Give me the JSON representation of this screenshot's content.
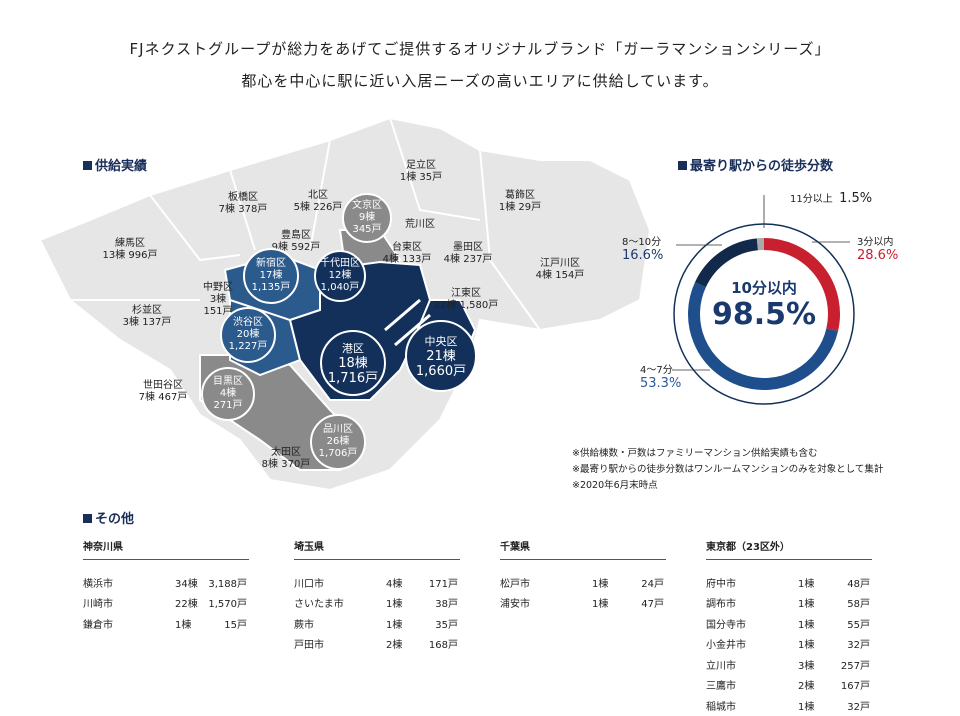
{
  "header": {
    "line1": "FJネクストグループが総力をあげてご提供するオリジナルブランド「ガーラマンションシリーズ」",
    "line2": "都心を中心に駅に近い入居ニーズの高いエリアに供給しています。"
  },
  "map_section": {
    "title": "供給実績",
    "labels": [
      {
        "name": "足立区",
        "value": "1棟 35戸"
      },
      {
        "name": "北区",
        "value": "5棟 226戸"
      },
      {
        "name": "板橋区",
        "value": "7棟 378戸"
      },
      {
        "name": "葛飾区",
        "value": "1棟 29戸"
      },
      {
        "name": "荒川区",
        "value": ""
      },
      {
        "name": "豊島区",
        "value": "9棟 592戸"
      },
      {
        "name": "練馬区",
        "value": "13棟 996戸"
      },
      {
        "name": "台東区",
        "value": "4棟 133戸"
      },
      {
        "name": "墨田区",
        "value": "4棟 237戸"
      },
      {
        "name": "江戸川区",
        "value": "4棟 154戸"
      },
      {
        "name": "中野区",
        "value": "3棟"
      },
      {
        "name": "中野区戸数",
        "value": "151戸"
      },
      {
        "name": "江東区",
        "value": "22棟 1,580戸"
      },
      {
        "name": "杉並区",
        "value": "3棟 137戸"
      },
      {
        "name": "世田谷区",
        "value": "7棟 467戸"
      },
      {
        "name": "太田区",
        "value": "8棟 370戸"
      }
    ],
    "bubbles": [
      {
        "name": "文京区",
        "count": "9棟",
        "units": "345戸"
      },
      {
        "name": "新宿区",
        "count": "17棟",
        "units": "1,135戸"
      },
      {
        "name": "千代田区",
        "count": "12棟",
        "units": "1,040戸"
      },
      {
        "name": "渋谷区",
        "count": "20棟",
        "units": "1,227戸"
      },
      {
        "name": "港区",
        "count": "18棟",
        "units": "1,716戸"
      },
      {
        "name": "中央区",
        "count": "21棟",
        "units": "1,660戸"
      },
      {
        "name": "目黒区",
        "count": "4棟",
        "units": "271戸"
      },
      {
        "name": "品川区",
        "count": "26棟",
        "units": "1,706戸"
      }
    ],
    "colors": {
      "navy": "#13305a",
      "blue": "#2b5a8c",
      "gray": "#8a8a8a",
      "light": "#e6e6e6"
    }
  },
  "walk_section": {
    "title": "最寄り駅からの徒歩分数",
    "center_label": "10分以内",
    "center_value": "98.5%",
    "segments": [
      {
        "label": "3分以内",
        "percent": "28.6%",
        "value": 28.6,
        "color": "#c8202f"
      },
      {
        "label": "4〜7分",
        "percent": "53.3%",
        "value": 53.3,
        "color": "#1f4e8c"
      },
      {
        "label": "8〜10分",
        "percent": "16.6%",
        "value": 16.6,
        "color": "#13294b"
      },
      {
        "label": "11分以上",
        "percent": "1.5%",
        "value": 1.5,
        "color": "#aaaaaa"
      }
    ]
  },
  "notes": [
    "※供給棟数・戸数はファミリーマンション供給実績も含む",
    "※最寄り駅からの徒歩分数はワンルームマンションのみを対象として集計",
    "※2020年6月末時点"
  ],
  "other_section": {
    "title": "その他",
    "prefectures": [
      {
        "name": "神奈川県",
        "rows": [
          {
            "city": "横浜市",
            "count": "34棟",
            "units": "3,188戸"
          },
          {
            "city": "川崎市",
            "count": "22棟",
            "units": "1,570戸"
          },
          {
            "city": "鎌倉市",
            "count": "1棟",
            "units": "15戸"
          }
        ]
      },
      {
        "name": "埼玉県",
        "rows": [
          {
            "city": "川口市",
            "count": "4棟",
            "units": "171戸"
          },
          {
            "city": "さいたま市",
            "count": "1棟",
            "units": "38戸"
          },
          {
            "city": "蕨市",
            "count": "1棟",
            "units": "35戸"
          },
          {
            "city": "戸田市",
            "count": "2棟",
            "units": "168戸"
          }
        ]
      },
      {
        "name": "千葉県",
        "rows": [
          {
            "city": "松戸市",
            "count": "1棟",
            "units": "24戸"
          },
          {
            "city": "浦安市",
            "count": "1棟",
            "units": "47戸"
          }
        ]
      },
      {
        "name": "東京都（23区外）",
        "rows": [
          {
            "city": "府中市",
            "count": "1棟",
            "units": "48戸"
          },
          {
            "city": "調布市",
            "count": "1棟",
            "units": "58戸"
          },
          {
            "city": "国分寺市",
            "count": "1棟",
            "units": "55戸"
          },
          {
            "city": "小金井市",
            "count": "1棟",
            "units": "32戸"
          },
          {
            "city": "立川市",
            "count": "3棟",
            "units": "257戸"
          },
          {
            "city": "三鷹市",
            "count": "2棟",
            "units": "167戸"
          },
          {
            "city": "稲城市",
            "count": "1棟",
            "units": "32戸"
          }
        ]
      }
    ]
  }
}
